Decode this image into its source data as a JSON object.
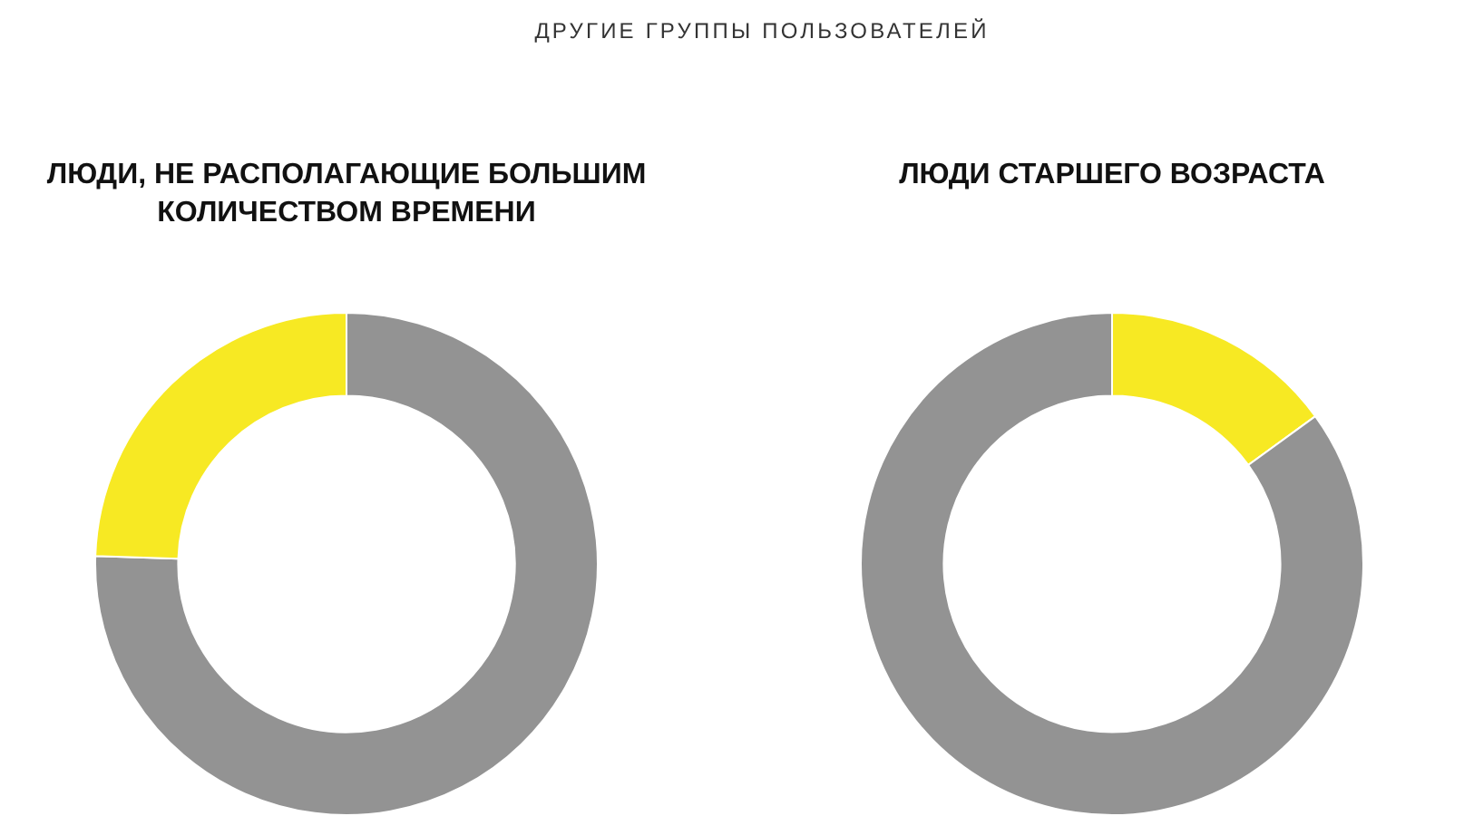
{
  "chart_data": [
    {
      "type": "donut",
      "title": "ЛЮДИ, НЕ РАСПОЛАГАЮЩИЕ БОЛЬШИМ КОЛИЧЕСТВОМ ВРЕМЕНИ",
      "annotations": [
        "ДРУГИЕ ГРУППЫ ПОЛЬЗОВАТЕЛЕЙ"
      ],
      "categories": [
        null,
        null
      ],
      "values": [
        75.5,
        24.5
      ],
      "colors": [
        "#939393",
        "#f7e923"
      ]
    },
    {
      "type": "donut",
      "title": "ЛЮДИ СТАРШЕГО ВОЗРАСТА",
      "categories": [
        null,
        null
      ],
      "values": [
        15,
        85
      ],
      "colors": [
        "#f7e923",
        "#939393"
      ]
    }
  ]
}
